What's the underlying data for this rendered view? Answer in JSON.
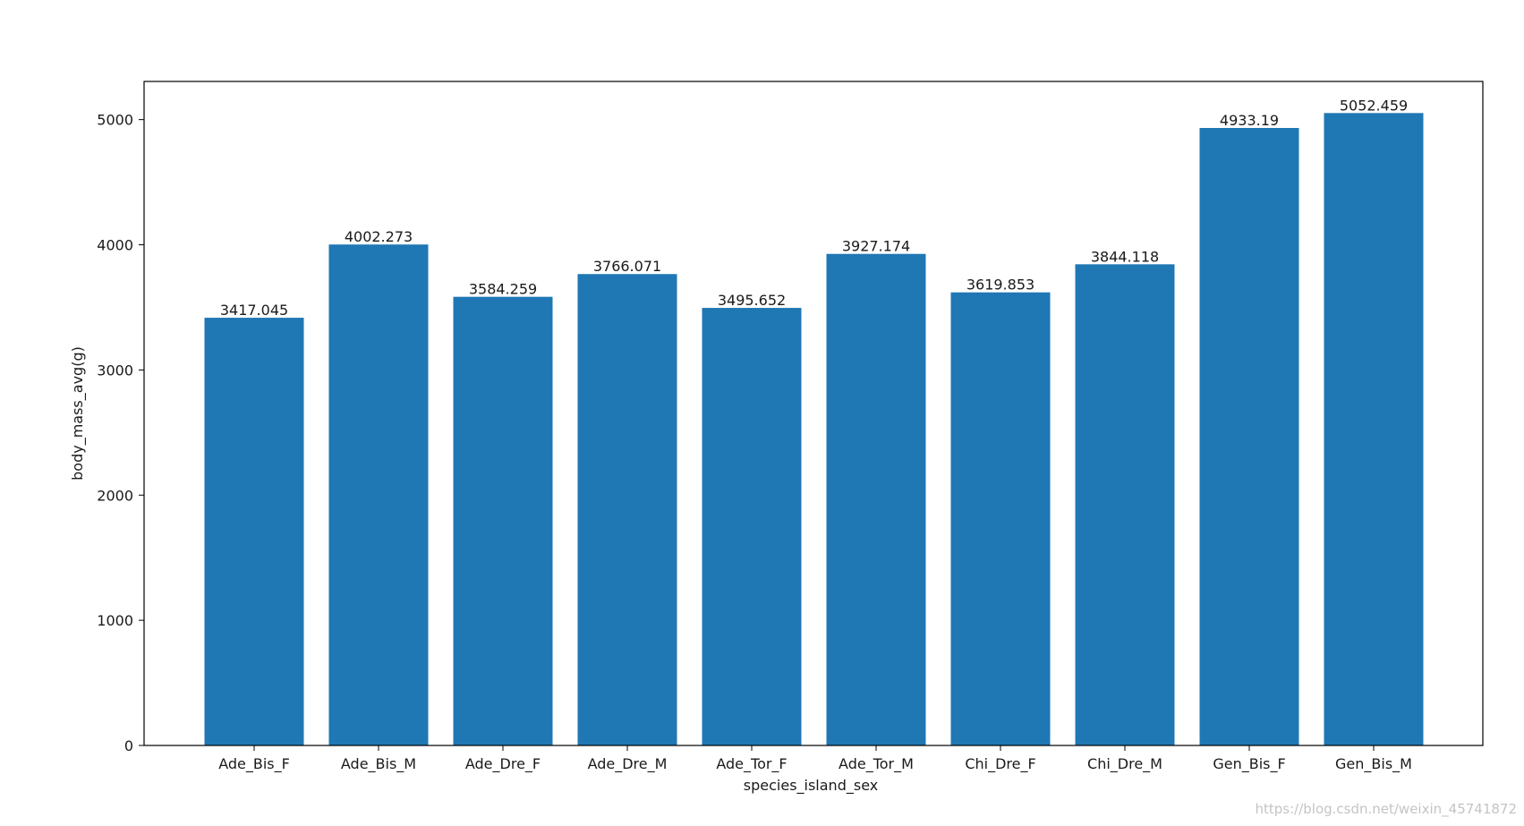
{
  "chart_data": {
    "type": "bar",
    "categories": [
      "Ade_Bis_F",
      "Ade_Bis_M",
      "Ade_Dre_F",
      "Ade_Dre_M",
      "Ade_Tor_F",
      "Ade_Tor_M",
      "Chi_Dre_F",
      "Chi_Dre_M",
      "Gen_Bis_F",
      "Gen_Bis_M"
    ],
    "values": [
      3417.045,
      4002.273,
      3584.259,
      3766.071,
      3495.652,
      3927.174,
      3619.853,
      3844.118,
      4933.19,
      5052.459
    ],
    "value_labels": [
      "3417.045",
      "4002.273",
      "3584.259",
      "3766.071",
      "3495.652",
      "3927.174",
      "3619.853",
      "3844.118",
      "4933.19",
      "5052.459"
    ],
    "xlabel": "species_island_sex",
    "ylabel": "body_mass_avg(g)",
    "ylim": [
      0,
      5305
    ],
    "yticks": [
      0,
      1000,
      2000,
      3000,
      4000,
      5000
    ],
    "bar_color": "#1f77b4",
    "grid": false,
    "legend": "none"
  },
  "watermark": "https://blog.csdn.net/weixin_45741872"
}
